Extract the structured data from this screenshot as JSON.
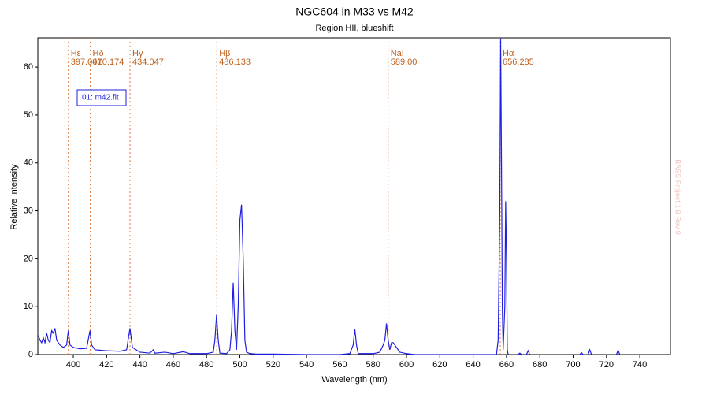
{
  "chart_data": {
    "type": "line",
    "title": "NGC604 in M33 vs M42",
    "subtitle": "Region HII, blueshift",
    "xlabel": "Wavelength (nm)",
    "ylabel": "Relative intensity",
    "watermark": "BASS Project 1.9 Rev 9",
    "xlim": [
      378.7,
      758.4
    ],
    "ylim": [
      0,
      66.1
    ],
    "xticks": [
      400,
      420,
      440,
      460,
      480,
      500,
      520,
      540,
      560,
      580,
      600,
      620,
      640,
      660,
      680,
      700,
      720,
      740
    ],
    "yticks": [
      0,
      10,
      20,
      30,
      40,
      50,
      60
    ],
    "annotations": [
      {
        "name": "Hε",
        "x": {
          "value": 397.007,
          "label": "397.007"
        }
      },
      {
        "name": "Hδ",
        "x": {
          "value": 410.174,
          "label": "410.174"
        }
      },
      {
        "name": "Hγ",
        "x": {
          "value": 434.047,
          "label": "434.047"
        }
      },
      {
        "name": "Hβ",
        "x": {
          "value": 486.133,
          "label": "486.133"
        }
      },
      {
        "name": "NaI",
        "x": {
          "value": 589,
          "label": "589.00"
        }
      },
      {
        "name": "Hα",
        "x": {
          "value": 656.285,
          "label": "656.285"
        }
      }
    ],
    "annotation_color": "#e07a3c",
    "series": [
      {
        "name": "01: m42.fit",
        "color": "#1f1fe0",
        "x": [
          379,
          380,
          381,
          382,
          383,
          384,
          385,
          386,
          387,
          388,
          389,
          390,
          392,
          394,
          396,
          397,
          398,
          400,
          404,
          408,
          410,
          411,
          413,
          420,
          428,
          432,
          434,
          435.5,
          440,
          446,
          448,
          449,
          455,
          460,
          466,
          470,
          480,
          484,
          485,
          486,
          487,
          488,
          492,
          494,
          495,
          496,
          497,
          498,
          499,
          500,
          501,
          502,
          503,
          504,
          506,
          510,
          520,
          540,
          560,
          566,
          568,
          569,
          570,
          571,
          580,
          584,
          586,
          587,
          588,
          589,
          590,
          591,
          592,
          594,
          596,
          600,
          605,
          630,
          650,
          654,
          655,
          656,
          656.5,
          657,
          657.5,
          658,
          659,
          659.5,
          660,
          660.5,
          661,
          662,
          667,
          668,
          669,
          670,
          672,
          673,
          674,
          675,
          704,
          705,
          706,
          707,
          709,
          710,
          711,
          712,
          726,
          727,
          728
        ],
        "values": [
          4,
          3,
          2.5,
          3.5,
          2.5,
          4.5,
          3,
          2.5,
          5,
          4.5,
          5.5,
          3,
          2,
          1.5,
          2,
          5,
          2,
          1.5,
          1.2,
          1.3,
          5,
          2,
          1,
          0.8,
          0.7,
          1,
          5.5,
          1.5,
          0.5,
          0.3,
          1,
          0.3,
          0.5,
          0.2,
          0.6,
          0.2,
          0.2,
          0.5,
          3,
          8.3,
          3,
          0.3,
          0.2,
          1,
          5,
          15,
          5,
          1,
          10,
          28,
          31.3,
          20,
          3,
          0.5,
          0.2,
          0.1,
          0.1,
          0,
          0,
          0.2,
          2,
          5.3,
          2,
          0.2,
          0.2,
          0.5,
          2,
          3,
          6.5,
          3,
          1,
          2.5,
          2.5,
          1.5,
          0.5,
          0.2,
          0,
          0,
          0,
          0,
          3,
          30,
          66,
          40,
          10,
          1,
          10,
          32,
          20,
          1,
          0,
          null,
          0,
          0.3,
          0,
          null,
          0,
          0.8,
          0,
          null,
          0,
          0.4,
          0,
          null,
          0,
          1,
          0,
          null,
          0,
          0.9,
          0
        ]
      }
    ]
  }
}
